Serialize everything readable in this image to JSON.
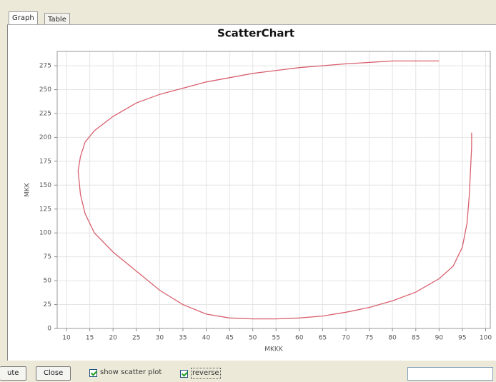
{
  "tabs": [
    "Graph",
    "Table"
  ],
  "chart_data": {
    "type": "line",
    "title": "ScatterChart",
    "x_label": "MKKK",
    "y_label": "MKK",
    "xlim": [
      8,
      101
    ],
    "ylim": [
      0,
      290
    ],
    "xticks": [
      10,
      15,
      20,
      25,
      30,
      35,
      40,
      45,
      50,
      55,
      60,
      65,
      70,
      75,
      80,
      85,
      90,
      95,
      100
    ],
    "yticks": [
      0,
      25,
      50,
      75,
      100,
      125,
      150,
      175,
      200,
      225,
      250,
      275
    ],
    "grid": true,
    "series": [
      {
        "color": "#d9606e",
        "x": [
          90,
          80,
          70,
          60,
          50,
          40,
          30,
          25,
          20,
          16,
          14,
          13,
          12.5,
          13,
          14,
          16,
          20,
          25,
          30,
          35,
          40,
          45,
          50,
          55,
          60,
          65,
          70,
          75,
          80,
          85,
          90,
          93,
          95,
          96,
          96.5,
          96.8,
          97,
          97
        ],
        "values": [
          280,
          280,
          277,
          273,
          267,
          258,
          245,
          236,
          222,
          207,
          195,
          180,
          165,
          140,
          120,
          100,
          80,
          60,
          40,
          25,
          15,
          11,
          10,
          10,
          11,
          13,
          17,
          22,
          29,
          38,
          52,
          65,
          85,
          110,
          140,
          170,
          190,
          205
        ]
      }
    ]
  },
  "controls": {
    "buttons": [
      "ute",
      "Close"
    ],
    "checkboxes": [
      {
        "label": "show scatter plot",
        "checked": true
      },
      {
        "label": "reverse",
        "checked": true
      }
    ]
  }
}
